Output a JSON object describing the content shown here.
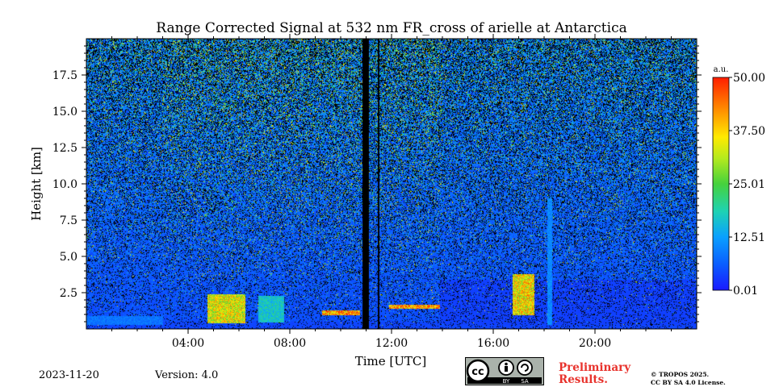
{
  "figure": {
    "title": "Range Corrected Signal at 532 nm FR_cross of arielle at Antarctica",
    "date": "2023-11-20",
    "version": "Version: 4.0",
    "preliminary_line1": "Preliminary",
    "preliminary_line2": "Results.",
    "copyright_line1": "© TROPOS 2025.",
    "copyright_line2": "CC BY SA 4.0 License.",
    "license_badge": {
      "cc": "cc",
      "by": "BY",
      "sa": "SA"
    }
  },
  "chart_data": {
    "type": "heatmap",
    "title": "Range Corrected Signal at 532 nm FR_cross of arielle at Antarctica",
    "xlabel": "Time [UTC]",
    "ylabel": "Height [km]",
    "xlim_hours": [
      0,
      24
    ],
    "ylim_km": [
      0,
      20
    ],
    "x_ticks": [
      {
        "value": 4,
        "label": "04:00"
      },
      {
        "value": 8,
        "label": "08:00"
      },
      {
        "value": 12,
        "label": "12:00"
      },
      {
        "value": 16,
        "label": "16:00"
      },
      {
        "value": 20,
        "label": "20:00"
      }
    ],
    "y_ticks": [
      {
        "value": 2.5,
        "label": "2.5"
      },
      {
        "value": 5.0,
        "label": "5.0"
      },
      {
        "value": 7.5,
        "label": "7.5"
      },
      {
        "value": 10.0,
        "label": "10.0"
      },
      {
        "value": 12.5,
        "label": "12.5"
      },
      {
        "value": 15.0,
        "label": "15.0"
      },
      {
        "value": 17.5,
        "label": "17.5"
      }
    ],
    "colorbar": {
      "unit": "a.u.",
      "min": 0.01,
      "max": 50.0,
      "ticks": [
        "0.01",
        "12.51",
        "25.01",
        "37.50",
        "50.00"
      ]
    },
    "data_gaps_hours": [
      [
        10.85,
        11.08
      ],
      [
        11.45,
        11.5
      ]
    ],
    "features": [
      {
        "name": "boundary layer",
        "start_h": 0,
        "end_h": 24,
        "bottom_km": 0.0,
        "top_km": 0.5,
        "level": 4.0
      },
      {
        "name": "low cloud",
        "start_h": 0.0,
        "end_h": 3.0,
        "bottom_km": 0.3,
        "top_km": 0.9,
        "level": 10.0
      },
      {
        "name": "convective cloud",
        "start_h": 4.75,
        "end_h": 6.25,
        "bottom_km": 0.4,
        "top_km": 2.4,
        "level": 40.0
      },
      {
        "name": "cloud streaks",
        "start_h": 6.75,
        "end_h": 7.75,
        "bottom_km": 0.5,
        "top_km": 2.3,
        "level": 20.0
      },
      {
        "name": "thin cloud layer",
        "start_h": 9.25,
        "end_h": 10.75,
        "bottom_km": 1.0,
        "top_km": 1.3,
        "level": 48.0
      },
      {
        "name": "thin cloud layer",
        "start_h": 11.9,
        "end_h": 13.9,
        "bottom_km": 1.4,
        "top_km": 1.7,
        "level": 48.0
      },
      {
        "name": "blue aerosol layer",
        "start_h": 13.9,
        "end_h": 24.0,
        "bottom_km": 0.3,
        "top_km": 3.4,
        "level": 3.5
      },
      {
        "name": "mixed phase cloud",
        "start_h": 16.75,
        "end_h": 17.6,
        "bottom_km": 1.0,
        "top_km": 3.8,
        "level": 42.0
      },
      {
        "name": "fall streak",
        "start_h": 18.1,
        "end_h": 18.3,
        "bottom_km": 0.3,
        "top_km": 9.0,
        "level": 12.0
      }
    ],
    "noise_scale": 20
  }
}
